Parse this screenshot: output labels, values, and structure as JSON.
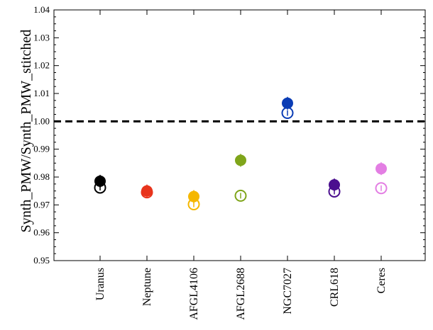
{
  "chart_data": {
    "type": "scatter",
    "ylabel": "Synth_PMW/Synth_PMW_stitched",
    "xlabel": "",
    "ylim": [
      0.95,
      1.04
    ],
    "yticks": [
      "0.95",
      "0.96",
      "0.97",
      "0.98",
      "0.99",
      "1.00",
      "1.01",
      "1.02",
      "1.03",
      "1.04"
    ],
    "grid": false,
    "reference_line": {
      "y": 1.0,
      "style": "dashed"
    },
    "categories": [
      "Uranus",
      "Neptune",
      "AFGL4106",
      "AFGL2688",
      "NGC7027",
      "CRL618",
      "Ceres"
    ],
    "series": [
      {
        "marker": "filled-circle",
        "values": [
          0.9785,
          0.975,
          0.973,
          0.986,
          1.0065,
          0.9772,
          0.983
        ]
      },
      {
        "marker": "open-circle",
        "values": [
          0.9762,
          0.9745,
          0.9702,
          0.9733,
          1.003,
          0.9748,
          0.976
        ]
      }
    ],
    "colors": [
      "#000000",
      "#e8341c",
      "#f5b700",
      "#7fa51a",
      "#0a3cb5",
      "#4b0f8f",
      "#e37ee3"
    ]
  }
}
